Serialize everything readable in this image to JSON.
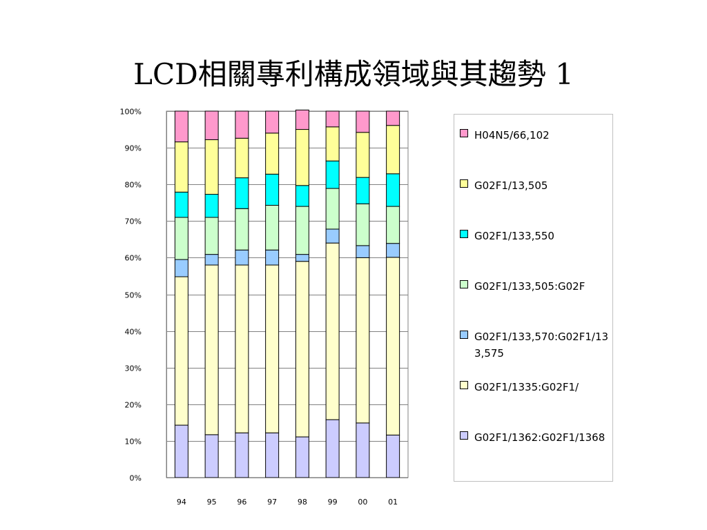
{
  "slide": {
    "title": "LCD相關專利構成領域與其趨勢 1"
  },
  "chart_data": {
    "type": "bar",
    "stacked": true,
    "normalized_percent": true,
    "categories": [
      "94",
      "95",
      "96",
      "97",
      "98",
      "99",
      "00",
      "01"
    ],
    "yticks": [
      "0%",
      "10%",
      "20%",
      "30%",
      "40%",
      "50%",
      "60%",
      "70%",
      "80%",
      "90%",
      "100%"
    ],
    "ylim": [
      0,
      100
    ],
    "grid": true,
    "legend_position": "right",
    "series": [
      {
        "name": "G02F1/1362:G02F1/1368",
        "color": "#ccccff",
        "values": [
          14.3,
          11.7,
          12.2,
          12.2,
          11.1,
          15.8,
          14.9,
          11.6
        ]
      },
      {
        "name": "G02F1/1335:G02F1/",
        "color": "#ffffcc",
        "values": [
          40.5,
          46.3,
          45.8,
          45.8,
          47.9,
          48.2,
          45.1,
          48.5
        ]
      },
      {
        "name": "G02F1/133,570:G02F1/133,575",
        "color": "#99ccff",
        "values": [
          4.7,
          2.9,
          4.1,
          4.1,
          1.9,
          3.8,
          3.3,
          3.8
        ]
      },
      {
        "name": "G02F1/133,505:G02F",
        "color": "#ccffcc",
        "values": [
          11.5,
          10.1,
          11.3,
          12.2,
          13.1,
          11.1,
          11.4,
          10.1
        ]
      },
      {
        "name": "G02F1/133,550",
        "color": "#00ffff",
        "values": [
          6.9,
          6.3,
          8.4,
          8.5,
          5.7,
          7.5,
          7.2,
          8.9
        ]
      },
      {
        "name": "G02F1/13,505",
        "color": "#ffff99",
        "values": [
          13.7,
          14.9,
          10.8,
          11.2,
          15.3,
          9.3,
          12.3,
          13.2
        ]
      },
      {
        "name": "H04N5/66,102",
        "color": "#ff99cc",
        "values": [
          8.4,
          7.8,
          7.4,
          6.0,
          5.3,
          4.3,
          5.8,
          3.9
        ]
      }
    ]
  },
  "legend": {
    "items": [
      {
        "label": "H04N5/66,102",
        "color": "#ff99cc"
      },
      {
        "label": "G02F1/13,505",
        "color": "#ffff99"
      },
      {
        "label": "G02F1/133,550",
        "color": "#00ffff"
      },
      {
        "label": "G02F1/133,505:G02F",
        "color": "#ccffcc"
      },
      {
        "label": "G02F1/133,570:G02F1/133,575",
        "color": "#99ccff"
      },
      {
        "label": "G02F1/1335:G02F1/",
        "color": "#ffffcc"
      },
      {
        "label": "G02F1/1362:G02F1/1368",
        "color": "#ccccff"
      }
    ]
  }
}
